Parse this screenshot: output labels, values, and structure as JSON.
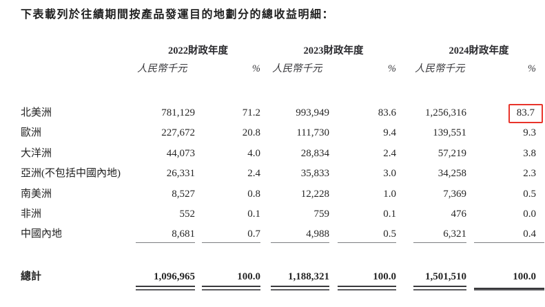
{
  "title": "下表載列於往績期間按產品發運目的地劃分的總收益明細：",
  "table": {
    "year_headers": [
      "2022財政年度",
      "2023財政年度",
      "2024財政年度"
    ],
    "subheaders": {
      "amount": "人民幣千元",
      "percent": "%"
    },
    "rows": [
      {
        "label": "北美洲",
        "values": [
          "781,129",
          "71.2",
          "993,949",
          "83.6",
          "1,256,316",
          "83.7"
        ]
      },
      {
        "label": "歐洲",
        "values": [
          "227,672",
          "20.8",
          "111,730",
          "9.4",
          "139,551",
          "9.3"
        ]
      },
      {
        "label": "大洋洲",
        "values": [
          "44,073",
          "4.0",
          "28,834",
          "2.4",
          "57,219",
          "3.8"
        ]
      },
      {
        "label": "亞洲(不包括中國內地)",
        "values": [
          "26,331",
          "2.4",
          "35,833",
          "3.0",
          "34,258",
          "2.3"
        ]
      },
      {
        "label": "南美洲",
        "values": [
          "8,527",
          "0.8",
          "12,228",
          "1.0",
          "7,369",
          "0.5"
        ]
      },
      {
        "label": "非洲",
        "values": [
          "552",
          "0.1",
          "759",
          "0.1",
          "476",
          "0.0"
        ]
      },
      {
        "label": "中國內地",
        "values": [
          "8,681",
          "0.7",
          "4,988",
          "0.5",
          "6,321",
          "0.4"
        ]
      }
    ],
    "total": {
      "label": "總計",
      "values": [
        "1,096,965",
        "100.0",
        "1,188,321",
        "100.0",
        "1,501,510",
        "100.0"
      ]
    },
    "highlight": {
      "value": "83.7",
      "color": "#e8332a",
      "location": "2024財政年度 % 北美洲"
    }
  }
}
